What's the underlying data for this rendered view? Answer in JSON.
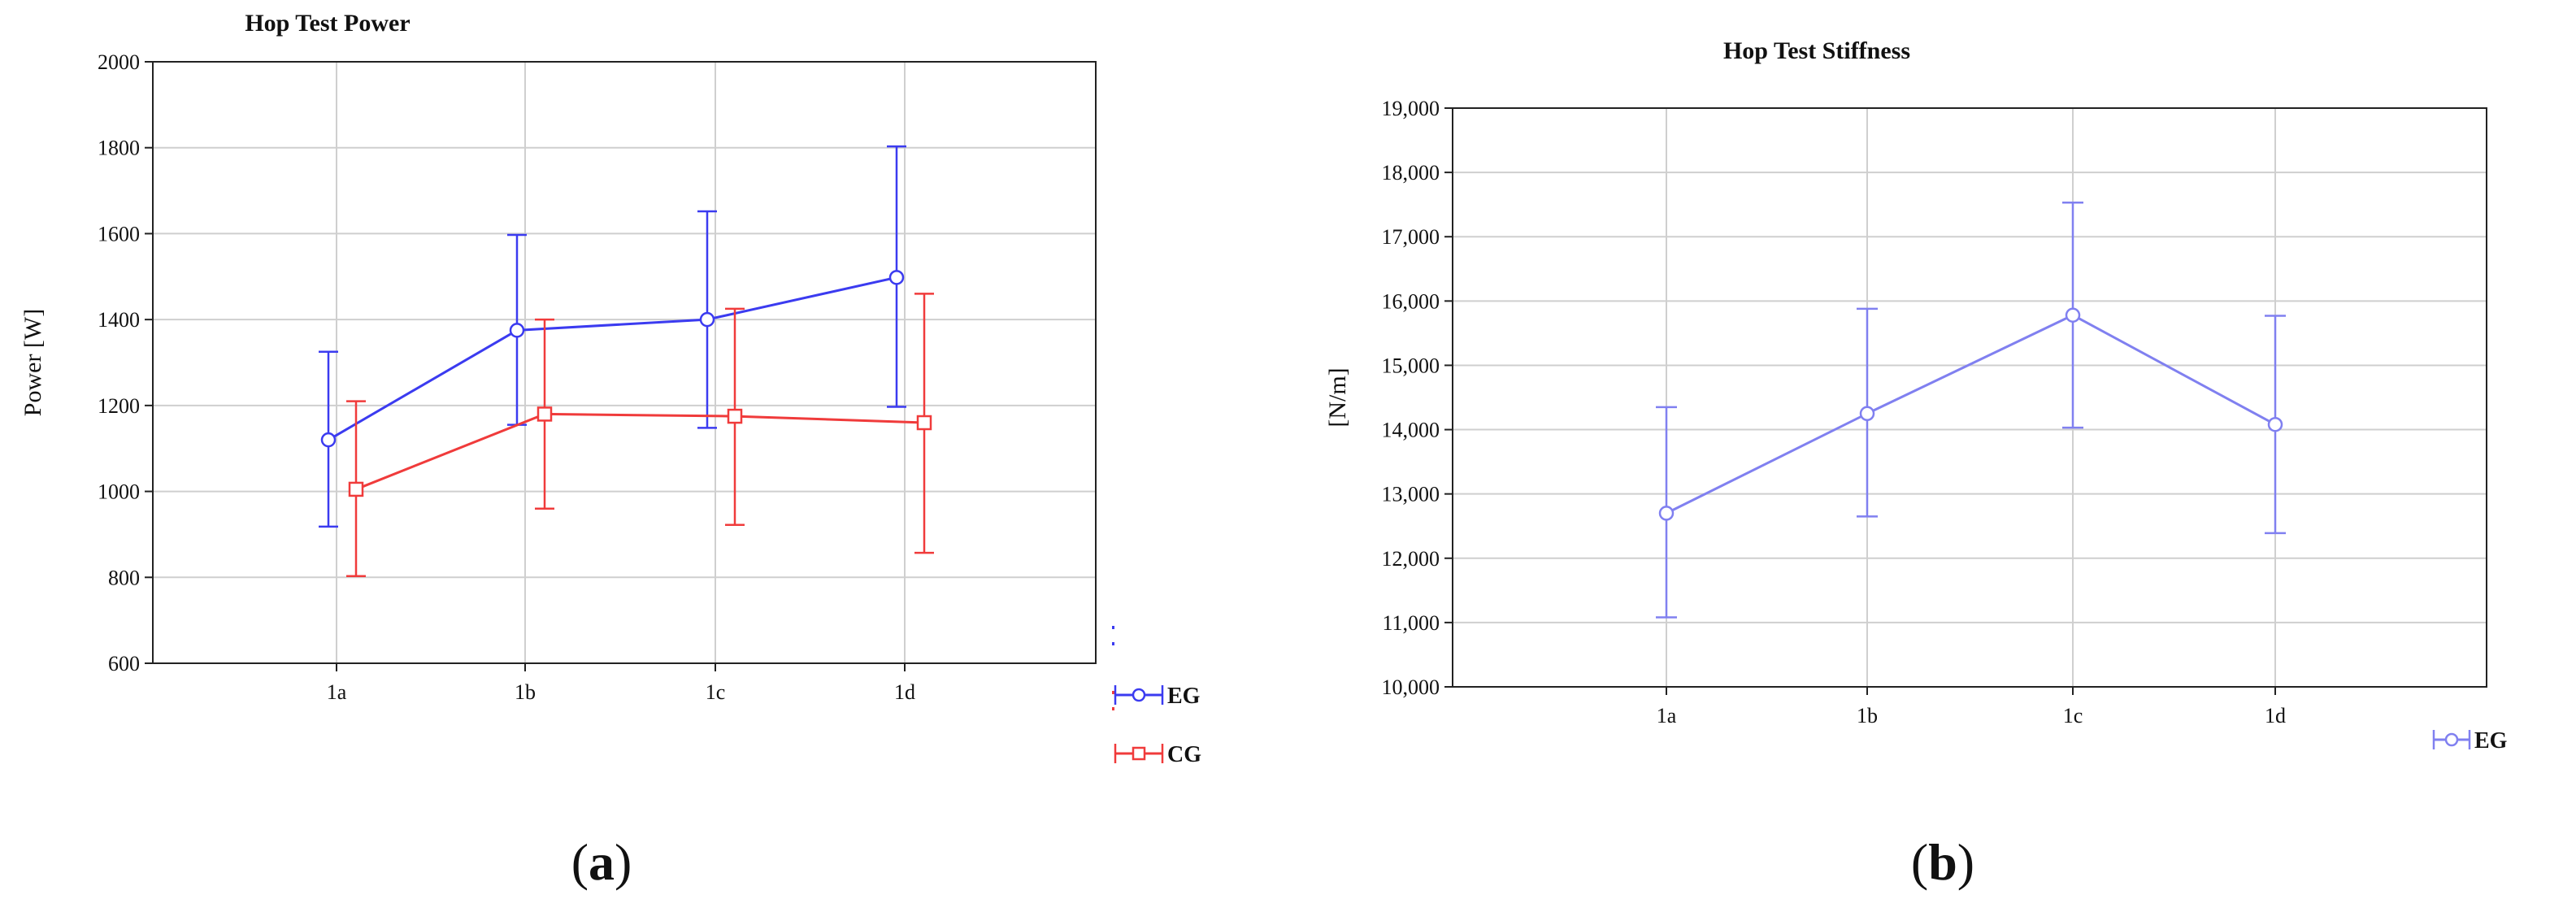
{
  "chart_data": [
    {
      "id": "power",
      "type": "line",
      "title": "Hop Test Power",
      "ylabel": "Power [W]",
      "xlabel": "",
      "categories": [
        "1a",
        "1b",
        "1c",
        "1d"
      ],
      "ylim": [
        600,
        2000
      ],
      "yticks": [
        600,
        800,
        1000,
        1200,
        1400,
        1600,
        1800,
        2000
      ],
      "grid": true,
      "legend": "bottom-right",
      "panel_label": "a",
      "series": [
        {
          "name": "EG",
          "color": "#3b3bf0",
          "marker": "circle",
          "values": [
            1120,
            1375,
            1400,
            1498
          ],
          "lower": [
            918,
            1155,
            1148,
            1197
          ],
          "upper": [
            1325,
            1597,
            1652,
            1803
          ]
        },
        {
          "name": "CG",
          "color": "#f03b3b",
          "marker": "square",
          "values": [
            1005,
            1180,
            1175,
            1160
          ],
          "lower": [
            803,
            960,
            922,
            857
          ],
          "upper": [
            1210,
            1400,
            1425,
            1460
          ]
        }
      ]
    },
    {
      "id": "stiffness",
      "type": "line",
      "title": "Hop Test Stiffness",
      "ylabel": "[N/m]",
      "xlabel": "",
      "categories": [
        "1a",
        "1b",
        "1c",
        "1d"
      ],
      "ylim": [
        10000,
        19000
      ],
      "yticks": [
        10000,
        11000,
        12000,
        13000,
        14000,
        15000,
        16000,
        17000,
        18000,
        19000
      ],
      "ytick_labels": [
        "10,000",
        "11,000",
        "12,000",
        "13,000",
        "14,000",
        "15,000",
        "16,000",
        "17,000",
        "18,000",
        "19,000"
      ],
      "grid": true,
      "legend": "bottom-right",
      "panel_label": "b",
      "series": [
        {
          "name": "EG",
          "color": "#8080f0",
          "marker": "circle",
          "values": [
            12700,
            14250,
            15780,
            14080
          ],
          "lower": [
            11080,
            12650,
            14030,
            12390
          ],
          "upper": [
            14350,
            15880,
            17530,
            15770
          ]
        }
      ]
    }
  ]
}
